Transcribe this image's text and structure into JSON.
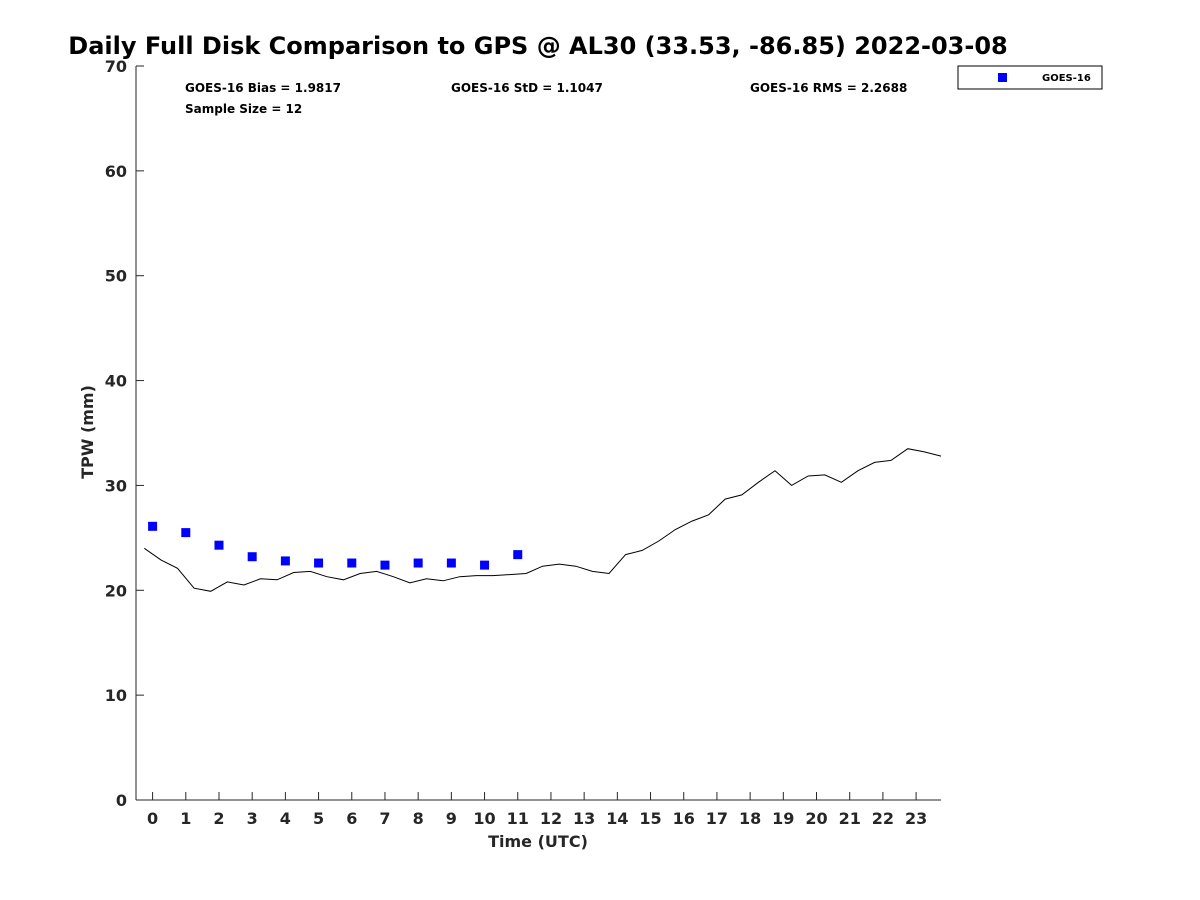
{
  "chart_data": {
    "type": "scatter",
    "title": "Daily Full Disk Comparison to GPS @ AL30 (33.53, -86.85) 2022-03-08",
    "xlabel": "Time (UTC)",
    "ylabel": "TPW (mm)",
    "xlim": [
      -0.5,
      23.75
    ],
    "ylim": [
      0,
      70
    ],
    "xticks": [
      "0",
      "1",
      "2",
      "3",
      "4",
      "5",
      "6",
      "7",
      "8",
      "9",
      "10",
      "11",
      "12",
      "13",
      "14",
      "15",
      "16",
      "17",
      "18",
      "19",
      "20",
      "21",
      "22",
      "23"
    ],
    "yticks": [
      "0",
      "10",
      "20",
      "30",
      "40",
      "50",
      "60",
      "70"
    ],
    "grid": false,
    "legend_position": "top-right, outside plot",
    "stats": {
      "bias": "GOES-16 Bias = 1.9817",
      "std": "GOES-16 StD = 1.1047",
      "rms": "GOES-16 RMS = 2.2688",
      "sample": "Sample Size = 12"
    },
    "series": [
      {
        "name": "GOES-16",
        "kind": "scatter",
        "marker": "square",
        "color": "#0000ff",
        "x": [
          0,
          1,
          2,
          3,
          4,
          5,
          6,
          7,
          8,
          9,
          10,
          11
        ],
        "y": [
          26.1,
          25.5,
          24.3,
          23.2,
          22.8,
          22.6,
          22.6,
          22.4,
          22.6,
          22.6,
          22.4,
          23.4
        ]
      },
      {
        "kind": "line",
        "color": "#000000",
        "x": [
          -0.25,
          0.25,
          0.75,
          1.25,
          1.75,
          2.25,
          2.75,
          3.25,
          3.75,
          4.25,
          4.75,
          5.25,
          5.75,
          6.25,
          6.75,
          7.25,
          7.75,
          8.25,
          8.75,
          9.25,
          9.75,
          10.25,
          10.75,
          11.25,
          11.75,
          12.25,
          12.75,
          13.25,
          13.75,
          14.25,
          14.75,
          15.25,
          15.75,
          16.25,
          16.75,
          17.25,
          17.75,
          18.25,
          18.75,
          19.25,
          19.75,
          20.25,
          20.75,
          21.25,
          21.75,
          22.25,
          22.75,
          23.25,
          23.75
        ],
        "y": [
          24.0,
          22.9,
          22.1,
          20.2,
          19.9,
          20.8,
          20.5,
          21.1,
          21.0,
          21.7,
          21.8,
          21.3,
          21.0,
          21.6,
          21.8,
          21.3,
          20.7,
          21.1,
          20.9,
          21.3,
          21.4,
          21.4,
          21.5,
          21.6,
          22.3,
          22.5,
          22.3,
          21.8,
          21.6,
          23.4,
          23.8,
          24.7,
          25.8,
          26.6,
          27.2,
          28.7,
          29.1,
          30.3,
          31.4,
          30.0,
          30.9,
          31.0,
          30.3,
          31.4,
          32.2,
          32.4,
          33.5,
          33.2,
          32.8
        ]
      }
    ]
  }
}
